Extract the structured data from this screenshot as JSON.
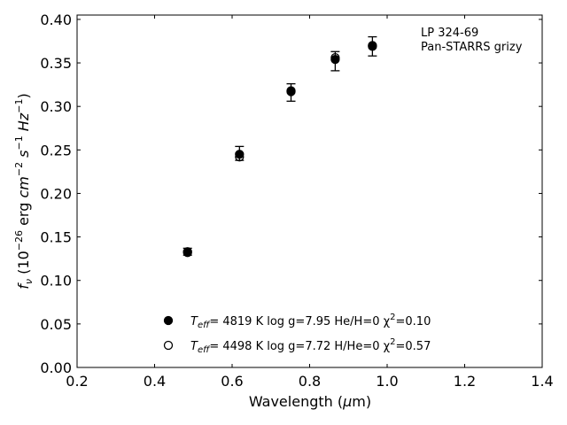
{
  "chart_data": {
    "type": "scatter",
    "xlabel": "Wavelength (μm)",
    "ylabel": "fν (10⁻²⁶ erg cm⁻² s⁻¹ Hz⁻¹)",
    "xlim": [
      0.2,
      1.4
    ],
    "ylim": [
      0.0,
      0.405
    ],
    "xticks": [
      "0.2",
      "0.4",
      "0.6",
      "0.8",
      "1.0",
      "1.2",
      "1.4"
    ],
    "yticks": [
      "0.00",
      "0.05",
      "0.10",
      "0.15",
      "0.20",
      "0.25",
      "0.30",
      "0.35",
      "0.40"
    ],
    "grid": false,
    "annotation": [
      "LP 324-69",
      "Pan-STARRS grizy"
    ],
    "observed": {
      "x": [
        0.485,
        0.619,
        0.752,
        0.866,
        0.962
      ],
      "y": [
        0.133,
        0.246,
        0.316,
        0.352,
        0.369
      ],
      "yerr": [
        0.004,
        0.008,
        0.01,
        0.011,
        0.011
      ]
    },
    "series": [
      {
        "name": "Teff=  4819 K  log g=7.95  He/H=0  χ²=0.10",
        "marker": "filled",
        "x": [
          0.485,
          0.619,
          0.752,
          0.866,
          0.962
        ],
        "y": [
          0.133,
          0.245,
          0.318,
          0.354,
          0.369
        ]
      },
      {
        "name": "Teff=  4498 K  log g=7.72  H/He=0  χ²=0.57",
        "marker": "open",
        "x": [
          0.485,
          0.619,
          0.752,
          0.866,
          0.962
        ],
        "y": [
          0.132,
          0.242,
          0.317,
          0.356,
          0.37
        ]
      }
    ],
    "legend": {
      "placement": "bottom-center",
      "entries": [
        {
          "marker": "filled",
          "prefix": "T",
          "sub": "eff",
          "rest": "=  4819 K  log g=7.95  He/H=0  χ",
          "sup": "2",
          "tail": "=0.10"
        },
        {
          "marker": "open",
          "prefix": "T",
          "sub": "eff",
          "rest": "=  4498 K  log g=7.72  H/He=0  χ",
          "sup": "2",
          "tail": "=0.57"
        }
      ]
    }
  }
}
